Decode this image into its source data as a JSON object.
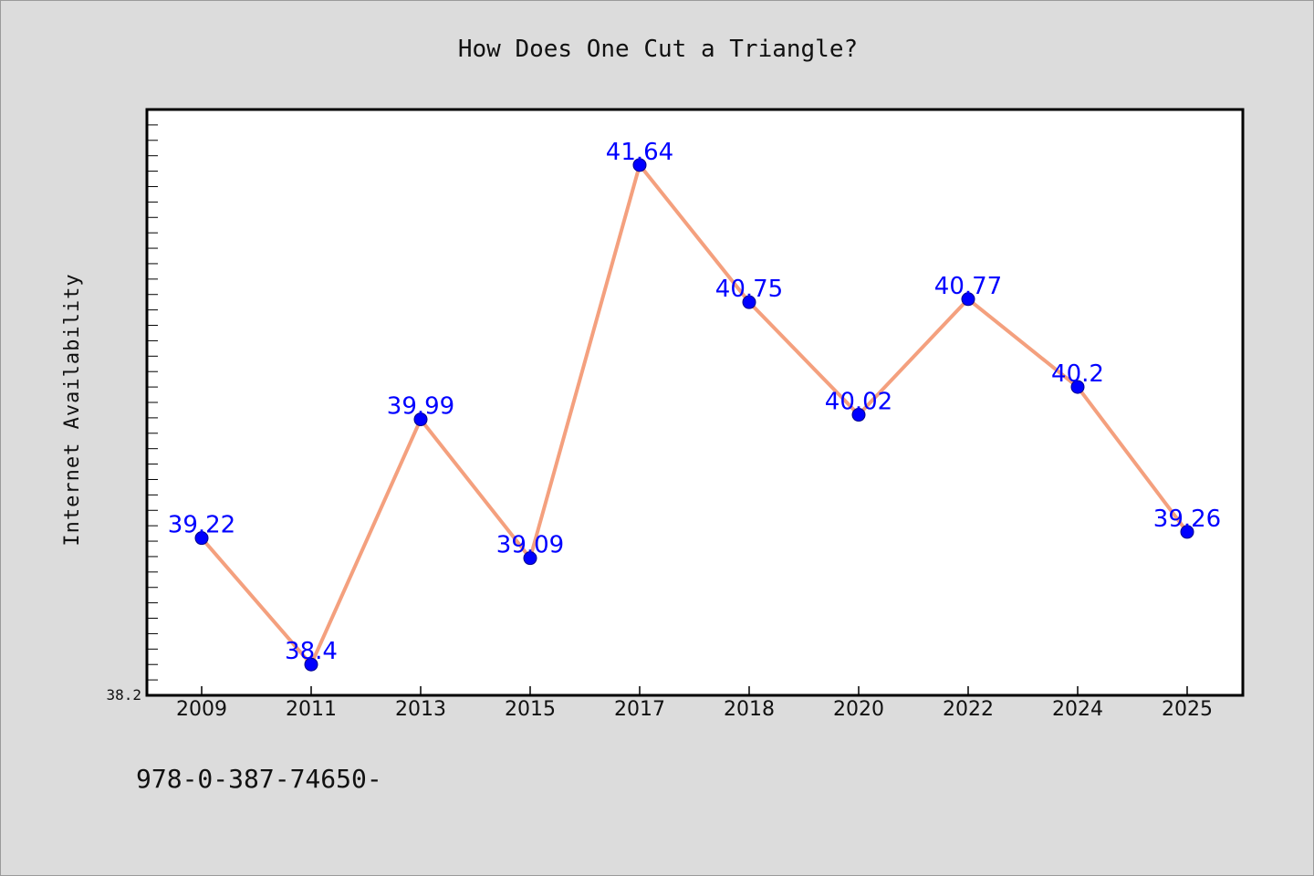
{
  "colors": {
    "background": "#dcdcdc",
    "plot_background": "#ffffff",
    "line": "#f4a07e",
    "marker": "#0000ff",
    "data_label": "#0000ff",
    "axis": "#000000"
  },
  "footer": {
    "text": "978-0-387-74650-"
  },
  "chart_data": {
    "type": "line",
    "title": "How Does One Cut a Triangle?",
    "xlabel": "",
    "ylabel": "Internet Availability",
    "categories": [
      "2009",
      "2011",
      "2013",
      "2015",
      "2017",
      "2018",
      "2020",
      "2022",
      "2024",
      "2025"
    ],
    "series": [
      {
        "values": [
          39.22,
          38.4,
          39.99,
          39.09,
          41.64,
          40.75,
          40.02,
          40.77,
          40.2,
          39.26
        ],
        "labels": [
          "39.22",
          "38.4",
          "39.99",
          "39.09",
          "41.64",
          "40.75",
          "40.02",
          "40.77",
          "40.2",
          "39.26"
        ]
      }
    ],
    "ylim": [
      38.2,
      42.0
    ],
    "y_tick_labels": [
      "38.2"
    ],
    "y_minor_tick_step": 0.1,
    "grid": false,
    "legend": "none"
  }
}
